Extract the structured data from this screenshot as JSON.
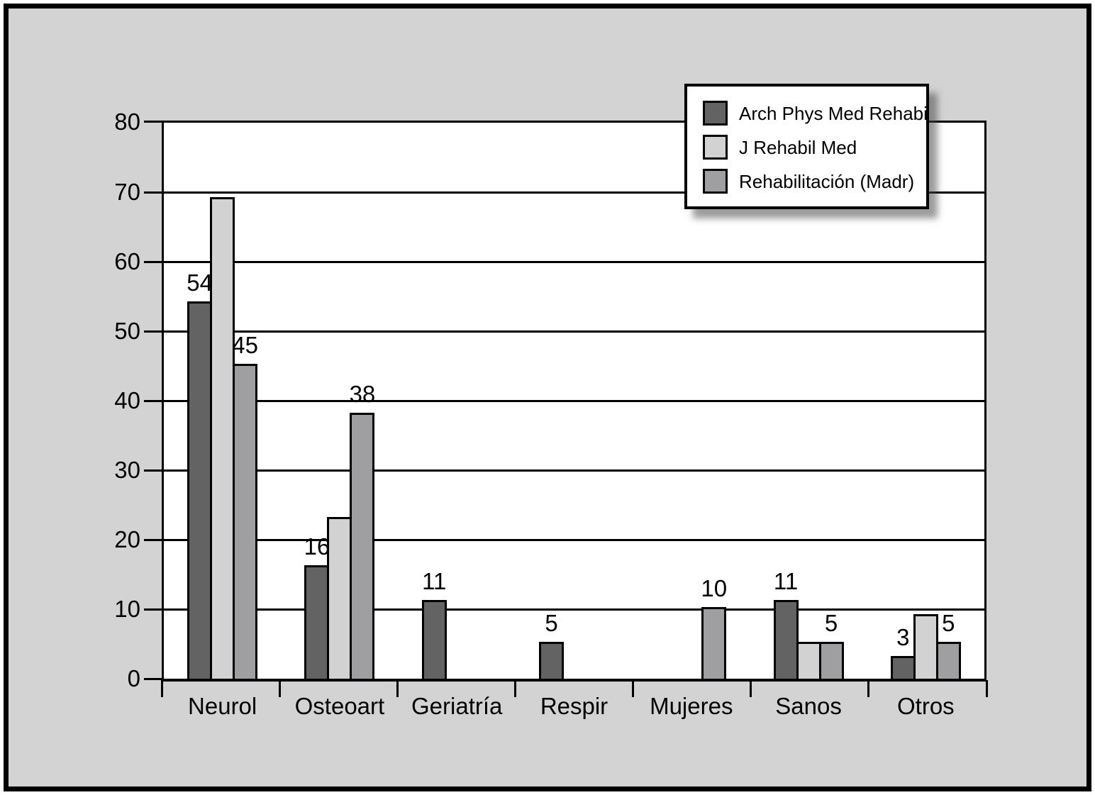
{
  "chart_data": {
    "type": "bar",
    "title": "",
    "xlabel": "",
    "ylabel": "",
    "categories": [
      "Neurol",
      "Osteoart",
      "Geriatría",
      "Respir",
      "Mujeres",
      "Sanos",
      "Otros"
    ],
    "series": [
      {
        "name": "Arch Phys Med Rehabi",
        "color": "#636363",
        "values": [
          54,
          16,
          11,
          5,
          0,
          11,
          3
        ],
        "value_labels": [
          "54",
          "16",
          "11",
          "5",
          "",
          "11",
          "3"
        ]
      },
      {
        "name": "J Rehabil Med",
        "color": "#d2d2d2",
        "values": [
          69,
          23,
          0,
          0,
          0,
          5,
          9
        ],
        "value_labels": [
          "",
          "",
          "",
          "",
          "",
          "",
          ""
        ]
      },
      {
        "name": "Rehabilitación (Madr)",
        "color": "#9f9fa2",
        "values": [
          45,
          38,
          0,
          0,
          10,
          5,
          5
        ],
        "value_labels": [
          "45",
          "38",
          "",
          "",
          "10",
          "5",
          "5"
        ]
      }
    ],
    "ylim": [
      0,
      80
    ],
    "yticks": [
      0,
      10,
      20,
      30,
      40,
      50,
      60,
      70,
      80
    ],
    "grid": true,
    "legend_position": "top-right",
    "colors": {
      "canvas_background": "#d3d3d3",
      "plot_background": "#ffffff",
      "axis_line": "#000000"
    }
  }
}
